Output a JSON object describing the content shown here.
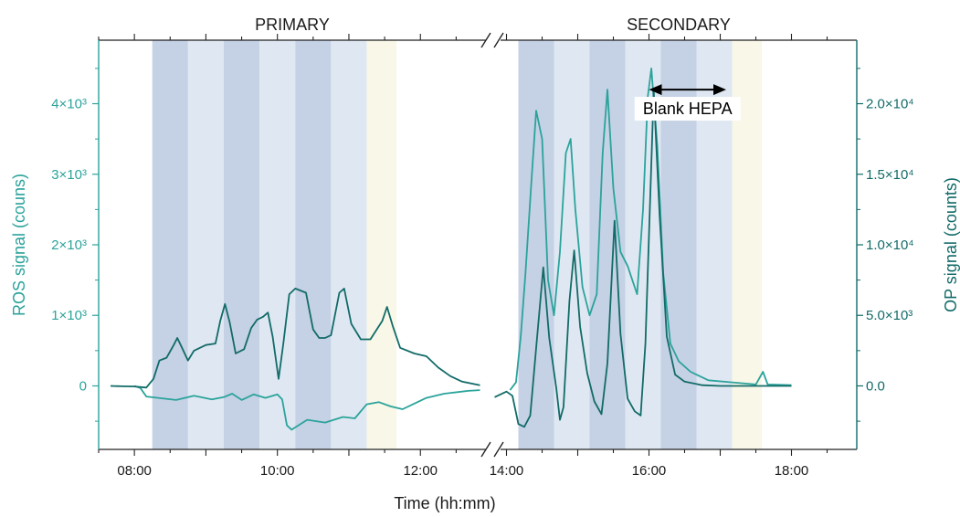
{
  "chart_data": {
    "type": "line",
    "panels": [
      {
        "title": "PRIMARY",
        "xlim": [
          "07:30",
          "12:55"
        ],
        "xticks": [
          "08:00",
          "10:00",
          "12:00"
        ]
      },
      {
        "title": "SECONDARY",
        "xlim": [
          "13:55",
          "18:55"
        ],
        "xticks": [
          "14:00",
          "16:00",
          "18:00"
        ]
      }
    ],
    "xlabel": "Time (hh:mm)",
    "y_left": {
      "label": "ROS signal (couns)",
      "lim": [
        -900,
        4900
      ],
      "ticks": [
        {
          "v": 0,
          "t": "0"
        },
        {
          "v": 1000,
          "t": "1×10³"
        },
        {
          "v": 2000,
          "t": "2×10³"
        },
        {
          "v": 3000,
          "t": "3×10³"
        },
        {
          "v": 4000,
          "t": "4×10³"
        }
      ],
      "color": "#2ba39b"
    },
    "y_right": {
      "label": "OP signal (counts)",
      "lim": [
        -4500,
        24500
      ],
      "ticks": [
        {
          "v": 0,
          "t": "0.0"
        },
        {
          "v": 5000,
          "t": "5.0×10³"
        },
        {
          "v": 10000,
          "t": "1.0×10⁴"
        },
        {
          "v": 15000,
          "t": "1.5×10⁴"
        },
        {
          "v": 20000,
          "t": "2.0×10⁴"
        }
      ],
      "color": "#126b68"
    },
    "bands": [
      {
        "from": "08:15",
        "to": "08:45",
        "color": "#c5d1e5"
      },
      {
        "from": "08:45",
        "to": "09:15",
        "color": "#dfe8f2"
      },
      {
        "from": "09:15",
        "to": "09:45",
        "color": "#c5d1e5"
      },
      {
        "from": "09:45",
        "to": "10:15",
        "color": "#dfe8f2"
      },
      {
        "from": "10:15",
        "to": "10:45",
        "color": "#c5d1e5"
      },
      {
        "from": "10:45",
        "to": "11:15",
        "color": "#dfe8f2"
      },
      {
        "from": "11:15",
        "to": "11:40",
        "color": "#f8f7e8"
      },
      {
        "from": "14:10",
        "to": "14:40",
        "color": "#c5d1e5"
      },
      {
        "from": "14:40",
        "to": "15:10",
        "color": "#dfe8f2"
      },
      {
        "from": "15:10",
        "to": "15:40",
        "color": "#c5d1e5"
      },
      {
        "from": "15:40",
        "to": "16:10",
        "color": "#dfe8f2"
      },
      {
        "from": "16:10",
        "to": "16:40",
        "color": "#c5d1e5"
      },
      {
        "from": "16:40",
        "to": "17:10",
        "color": "#dfe8f2"
      },
      {
        "from": "17:10",
        "to": "17:35",
        "color": "#f8f7e8"
      }
    ],
    "annotation": {
      "text": "Blank HEPA",
      "from": "16:00",
      "to": "17:05",
      "y_left": 4200
    },
    "series": [
      {
        "axis": "left",
        "color": "#2ba39b",
        "points": [
          [
            "08:00",
            0
          ],
          [
            "08:05",
            -30
          ],
          [
            "08:10",
            -150
          ],
          [
            "08:20",
            -170
          ],
          [
            "08:35",
            -200
          ],
          [
            "08:50",
            -140
          ],
          [
            "09:05",
            -190
          ],
          [
            "09:15",
            -160
          ],
          [
            "09:22",
            -110
          ],
          [
            "09:30",
            -200
          ],
          [
            "09:40",
            -120
          ],
          [
            "09:50",
            -170
          ],
          [
            "10:00",
            -120
          ],
          [
            "10:04",
            -190
          ],
          [
            "10:08",
            -560
          ],
          [
            "10:12",
            -620
          ],
          [
            "10:25",
            -480
          ],
          [
            "10:40",
            -520
          ],
          [
            "10:55",
            -440
          ],
          [
            "11:05",
            -460
          ],
          [
            "11:15",
            -260
          ],
          [
            "11:25",
            -230
          ],
          [
            "11:35",
            -290
          ],
          [
            "11:45",
            -330
          ],
          [
            "11:55",
            -250
          ],
          [
            "12:05",
            -170
          ],
          [
            "12:20",
            -110
          ],
          [
            "12:40",
            -70
          ],
          [
            "12:50",
            -60
          ]
        ]
      },
      {
        "axis": "right",
        "color": "#126b68",
        "points": [
          [
            "07:40",
            0
          ],
          [
            "07:50",
            -30
          ],
          [
            "08:00",
            -40
          ],
          [
            "08:10",
            -120
          ],
          [
            "08:16",
            500
          ],
          [
            "08:21",
            1800
          ],
          [
            "08:27",
            2000
          ],
          [
            "08:33",
            2900
          ],
          [
            "08:36",
            3400
          ],
          [
            "08:40",
            2700
          ],
          [
            "08:45",
            1800
          ],
          [
            "08:50",
            2500
          ],
          [
            "09:00",
            2900
          ],
          [
            "09:08",
            3000
          ],
          [
            "09:12",
            4600
          ],
          [
            "09:16",
            5800
          ],
          [
            "09:20",
            4500
          ],
          [
            "09:25",
            2300
          ],
          [
            "09:32",
            2600
          ],
          [
            "09:38",
            4100
          ],
          [
            "09:43",
            4700
          ],
          [
            "09:48",
            4900
          ],
          [
            "09:52",
            5200
          ],
          [
            "09:56",
            3500
          ],
          [
            "10:01",
            500
          ],
          [
            "10:05",
            3000
          ],
          [
            "10:10",
            6500
          ],
          [
            "10:15",
            6900
          ],
          [
            "10:24",
            6600
          ],
          [
            "10:30",
            4000
          ],
          [
            "10:35",
            3400
          ],
          [
            "10:40",
            3400
          ],
          [
            "10:45",
            3600
          ],
          [
            "10:52",
            6600
          ],
          [
            "10:56",
            6900
          ],
          [
            "11:02",
            4400
          ],
          [
            "11:10",
            3300
          ],
          [
            "11:18",
            3300
          ],
          [
            "11:28",
            4600
          ],
          [
            "11:32",
            5600
          ],
          [
            "11:37",
            4200
          ],
          [
            "11:43",
            2700
          ],
          [
            "11:55",
            2300
          ],
          [
            "12:05",
            2100
          ],
          [
            "12:15",
            1300
          ],
          [
            "12:25",
            700
          ],
          [
            "12:35",
            300
          ],
          [
            "12:50",
            50
          ]
        ]
      },
      {
        "axis": "left",
        "color": "#2ba39b",
        "points": [
          [
            "14:03",
            -60
          ],
          [
            "14:08",
            50
          ],
          [
            "14:12",
            700
          ],
          [
            "14:16",
            1600
          ],
          [
            "14:21",
            2900
          ],
          [
            "14:25",
            3900
          ],
          [
            "14:30",
            3500
          ],
          [
            "14:35",
            1500
          ],
          [
            "14:40",
            1000
          ],
          [
            "14:45",
            1900
          ],
          [
            "14:50",
            3300
          ],
          [
            "14:54",
            3500
          ],
          [
            "14:58",
            2500
          ],
          [
            "15:04",
            1400
          ],
          [
            "15:10",
            1000
          ],
          [
            "15:16",
            1300
          ],
          [
            "15:21",
            3300
          ],
          [
            "15:25",
            4200
          ],
          [
            "15:30",
            2800
          ],
          [
            "15:36",
            1900
          ],
          [
            "15:42",
            1700
          ],
          [
            "15:50",
            1300
          ],
          [
            "15:55",
            2500
          ],
          [
            "15:59",
            4100
          ],
          [
            "16:02",
            4500
          ],
          [
            "16:07",
            3400
          ],
          [
            "16:12",
            1600
          ],
          [
            "16:18",
            600
          ],
          [
            "16:25",
            350
          ],
          [
            "16:35",
            200
          ],
          [
            "16:50",
            80
          ],
          [
            "17:10",
            50
          ],
          [
            "17:30",
            20
          ],
          [
            "17:36",
            200
          ],
          [
            "17:40",
            20
          ],
          [
            "18:00",
            10
          ]
        ]
      },
      {
        "axis": "right",
        "color": "#126b68",
        "points": [
          [
            "13:50",
            -800
          ],
          [
            "14:00",
            -400
          ],
          [
            "14:05",
            -700
          ],
          [
            "14:10",
            -2700
          ],
          [
            "14:15",
            -2900
          ],
          [
            "14:20",
            -2100
          ],
          [
            "14:25",
            2700
          ],
          [
            "14:31",
            8400
          ],
          [
            "14:36",
            3400
          ],
          [
            "14:42",
            -200
          ],
          [
            "14:45",
            -2400
          ],
          [
            "14:48",
            -1500
          ],
          [
            "14:53",
            6000
          ],
          [
            "14:57",
            9600
          ],
          [
            "15:02",
            4200
          ],
          [
            "15:08",
            900
          ],
          [
            "15:14",
            -1100
          ],
          [
            "15:20",
            -2000
          ],
          [
            "15:25",
            1600
          ],
          [
            "15:31",
            11700
          ],
          [
            "15:36",
            3700
          ],
          [
            "15:42",
            -900
          ],
          [
            "15:48",
            -1800
          ],
          [
            "15:53",
            -2100
          ],
          [
            "15:57",
            3000
          ],
          [
            "16:04",
            20900
          ],
          [
            "16:09",
            12000
          ],
          [
            "16:15",
            3500
          ],
          [
            "16:22",
            800
          ],
          [
            "16:30",
            300
          ],
          [
            "16:45",
            50
          ],
          [
            "17:00",
            0
          ],
          [
            "17:30",
            0
          ],
          [
            "18:00",
            0
          ]
        ]
      }
    ]
  }
}
